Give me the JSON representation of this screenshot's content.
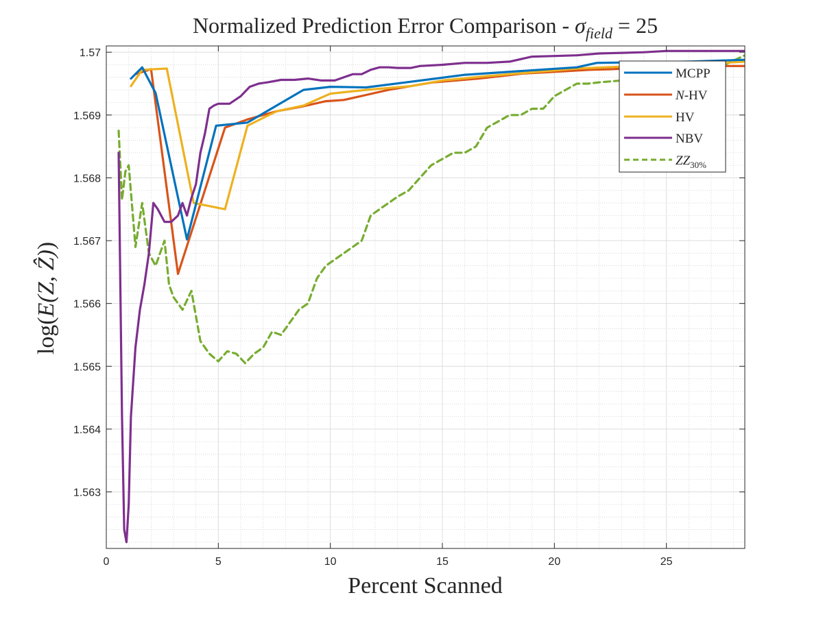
{
  "chart_data": {
    "type": "line",
    "title_prefix": "Normalized Prediction Error Comparison - ",
    "title_sigma": "σ",
    "title_sub": "field",
    "title_suffix": " = 25",
    "xlabel": "Percent Scanned",
    "ylabel_prefix": "log(",
    "ylabel_mid": "E(Z, Ẑ)",
    "ylabel_suffix": ")",
    "xlim": [
      0,
      28.5
    ],
    "ylim": [
      1.5621,
      1.5701
    ],
    "xticks": [
      0,
      5,
      10,
      15,
      20,
      25
    ],
    "xtick_labels": [
      "0",
      "5",
      "10",
      "15",
      "20",
      "25"
    ],
    "yticks": [
      1.563,
      1.564,
      1.565,
      1.566,
      1.567,
      1.568,
      1.569,
      1.57
    ],
    "ytick_labels": [
      "1.563",
      "1.564",
      "1.565",
      "1.566",
      "1.567",
      "1.568",
      "1.569",
      "1.57"
    ],
    "grid": true,
    "minor_grid": true,
    "legend_position": "top-right",
    "series": [
      {
        "name": "MCPP",
        "color": "#0072BD",
        "dash": false,
        "x": [
          1.1,
          1.6,
          2.2,
          3.6,
          4.9,
          6.3,
          8.8,
          10.0,
          11.6,
          13.6,
          16.0,
          18.5,
          21.0,
          21.9,
          24.0,
          26.0,
          28.5
        ],
        "y": [
          1.56958,
          1.56976,
          1.56935,
          1.56702,
          1.56883,
          1.56888,
          1.5694,
          1.56945,
          1.56944,
          1.56953,
          1.56964,
          1.5697,
          1.56976,
          1.56983,
          1.56984,
          1.56985,
          1.56988
        ]
      },
      {
        "name": "-HV",
        "name_prefix": "N",
        "color": "#D95319",
        "dash": false,
        "x": [
          1.3,
          2.0,
          3.2,
          5.3,
          6.3,
          7.6,
          8.8,
          9.8,
          10.6,
          11.6,
          12.6,
          13.6,
          14.6,
          15.6,
          16.6,
          17.6,
          18.6,
          19.6,
          20.6,
          21.6,
          22.6,
          23.6,
          24.6,
          25.6,
          26.6,
          27.6,
          28.5
        ],
        "y": [
          1.56965,
          1.56973,
          1.56647,
          1.5688,
          1.56893,
          1.56906,
          1.56914,
          1.56922,
          1.56924,
          1.56932,
          1.5694,
          1.56946,
          1.56952,
          1.56955,
          1.56958,
          1.56962,
          1.56966,
          1.56968,
          1.5697,
          1.56972,
          1.56973,
          1.56975,
          1.56976,
          1.56977,
          1.56977,
          1.56978,
          1.56978
        ]
      },
      {
        "name": "HV",
        "color": "#EDB120",
        "dash": false,
        "x": [
          1.1,
          1.6,
          2.7,
          3.9,
          5.3,
          6.3,
          7.6,
          8.8,
          10.0,
          11.6,
          13.6,
          15.0,
          17.0,
          19.0,
          21.0,
          23.0,
          25.0,
          27.0,
          28.5
        ],
        "y": [
          1.56946,
          1.56972,
          1.56974,
          1.5676,
          1.5675,
          1.56883,
          1.56906,
          1.56915,
          1.56934,
          1.5694,
          1.56946,
          1.56955,
          1.56962,
          1.56968,
          1.56974,
          1.56977,
          1.5698,
          1.56982,
          1.56985
        ]
      },
      {
        "name": "NBV",
        "color": "#7E2F8E",
        "dash": false,
        "x": [
          0.55,
          0.7,
          0.8,
          0.9,
          1.0,
          1.1,
          1.3,
          1.5,
          1.7,
          1.9,
          2.1,
          2.3,
          2.6,
          2.9,
          3.2,
          3.4,
          3.6,
          3.8,
          4.0,
          4.2,
          4.4,
          4.6,
          4.8,
          5.0,
          5.5,
          6.0,
          6.4,
          6.8,
          7.2,
          7.8,
          8.4,
          9.0,
          9.6,
          10.2,
          10.6,
          11.0,
          11.4,
          11.8,
          12.2,
          12.6,
          13.0,
          13.6,
          14.0,
          15.0,
          16.0,
          17.0,
          18.0,
          19.0,
          20.0,
          21.0,
          22.0,
          23.0,
          24.0,
          25.0,
          26.0,
          27.0,
          28.5
        ],
        "y": [
          1.5684,
          1.5642,
          1.5624,
          1.5622,
          1.5628,
          1.5642,
          1.5653,
          1.5659,
          1.5663,
          1.5668,
          1.5676,
          1.5675,
          1.5673,
          1.5673,
          1.5674,
          1.5676,
          1.5674,
          1.56768,
          1.5679,
          1.5684,
          1.5687,
          1.5691,
          1.56915,
          1.56918,
          1.56918,
          1.5693,
          1.56945,
          1.5695,
          1.56952,
          1.56956,
          1.56956,
          1.56958,
          1.56955,
          1.56955,
          1.5696,
          1.56965,
          1.56965,
          1.56972,
          1.56976,
          1.56976,
          1.56975,
          1.56975,
          1.56978,
          1.5698,
          1.56983,
          1.56983,
          1.56985,
          1.56993,
          1.56994,
          1.56995,
          1.56998,
          1.56999,
          1.57,
          1.57002,
          1.57002,
          1.57002,
          1.57002
        ]
      },
      {
        "name": "ZZ",
        "name_sub": "30%",
        "color": "#77AC30",
        "dash": true,
        "x": [
          0.55,
          0.7,
          0.85,
          1.0,
          1.3,
          1.6,
          1.9,
          2.2,
          2.6,
          2.8,
          3.0,
          3.4,
          3.8,
          4.2,
          4.6,
          5.0,
          5.4,
          5.8,
          6.2,
          6.6,
          7.0,
          7.4,
          7.8,
          8.2,
          8.6,
          9.0,
          9.4,
          9.8,
          10.2,
          10.6,
          11.0,
          11.4,
          11.8,
          12.2,
          12.6,
          13.0,
          13.5,
          14.0,
          14.5,
          15.0,
          15.5,
          16.0,
          16.5,
          17.0,
          17.5,
          18.0,
          18.5,
          19.0,
          19.5,
          20.0,
          20.5,
          21.0,
          21.5,
          22.0,
          23.0,
          24.0,
          25.0,
          26.0,
          27.0,
          28.5
        ],
        "y": [
          1.56875,
          1.56765,
          1.5681,
          1.5682,
          1.5669,
          1.5676,
          1.5668,
          1.5666,
          1.567,
          1.5663,
          1.5661,
          1.5659,
          1.5662,
          1.5654,
          1.5652,
          1.56508,
          1.56524,
          1.5652,
          1.56505,
          1.5652,
          1.5653,
          1.56555,
          1.5655,
          1.5657,
          1.5659,
          1.566,
          1.5664,
          1.5666,
          1.5667,
          1.5668,
          1.5669,
          1.567,
          1.5674,
          1.5675,
          1.5676,
          1.5677,
          1.5678,
          1.568,
          1.5682,
          1.5683,
          1.5684,
          1.5684,
          1.5685,
          1.5688,
          1.5689,
          1.569,
          1.569,
          1.5691,
          1.5691,
          1.5693,
          1.5694,
          1.5695,
          1.5695,
          1.56952,
          1.56955,
          1.56958,
          1.5696,
          1.56965,
          1.5697,
          1.56995
        ]
      }
    ]
  }
}
